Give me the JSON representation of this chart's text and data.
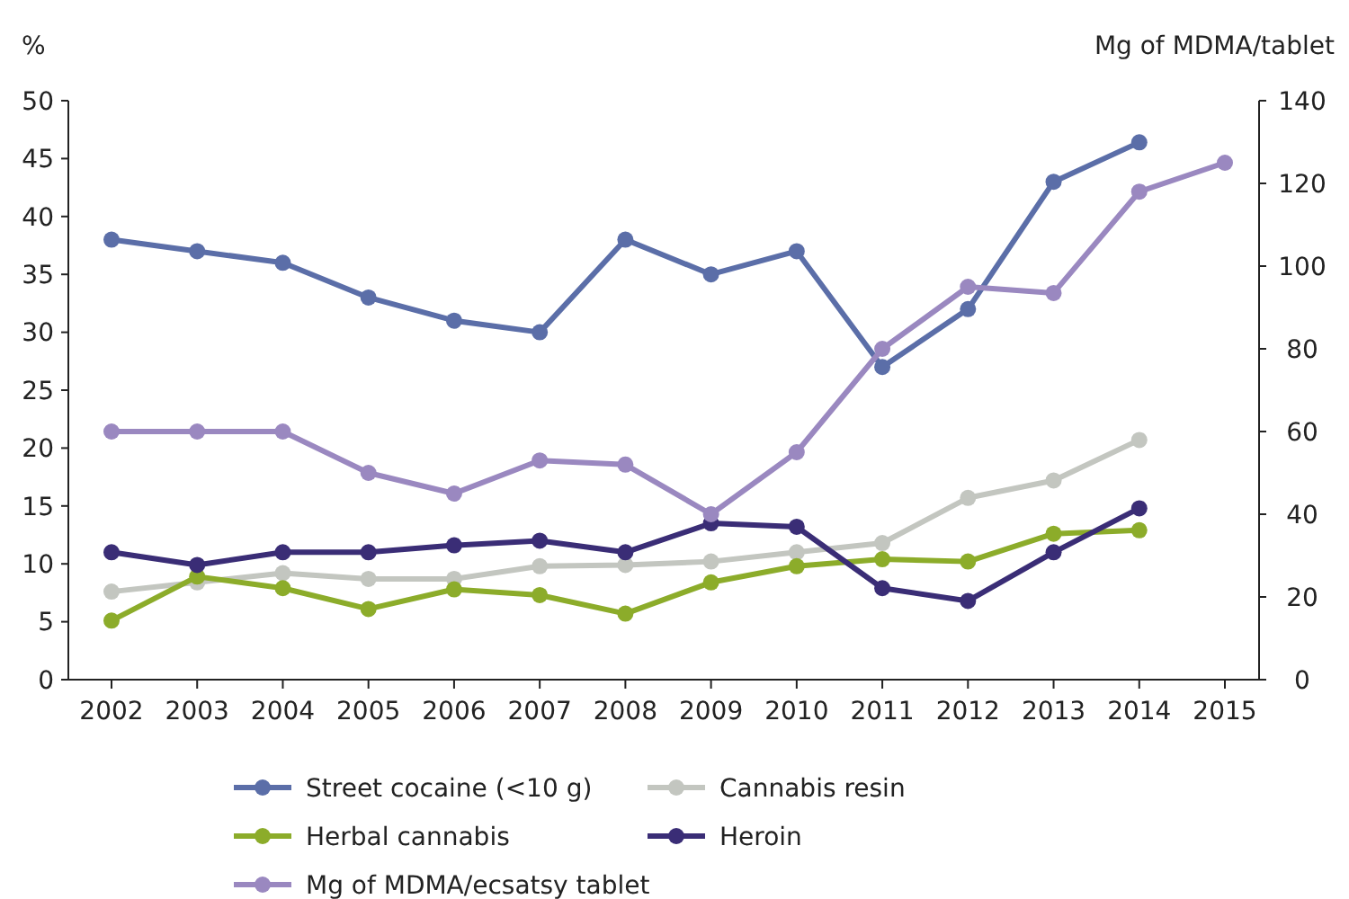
{
  "chart_data": {
    "type": "line",
    "ylabel": "%",
    "y2label": "Mg of MDMA/tablet",
    "categories": [
      "2002",
      "2003",
      "2004",
      "2005",
      "2006",
      "2007",
      "2008",
      "2009",
      "2010",
      "2011",
      "2012",
      "2013",
      "2014",
      "2015"
    ],
    "ylim": [
      0,
      50
    ],
    "yticks": [
      0,
      5,
      10,
      15,
      20,
      25,
      30,
      35,
      40,
      45,
      50
    ],
    "y2lim": [
      0,
      140
    ],
    "y2ticks": [
      0,
      20,
      40,
      60,
      80,
      100,
      120,
      140
    ],
    "marker": "circle",
    "legend": "bottom",
    "grid": false,
    "series": [
      {
        "name": "Street cocaine (<10 g)",
        "color": "#5b6ea8",
        "values": [
          38,
          37,
          36,
          33,
          31,
          30,
          38,
          35,
          37,
          27,
          32,
          43,
          46.4,
          null
        ]
      },
      {
        "name": "Cannabis resin",
        "color": "#c3c6c0",
        "values": [
          7.6,
          8.4,
          9.2,
          8.7,
          8.7,
          9.8,
          9.9,
          10.2,
          11,
          11.8,
          15.7,
          17.2,
          20.7,
          null
        ]
      },
      {
        "name": "Herbal cannabis",
        "color": "#8cac2a",
        "values": [
          5.1,
          8.9,
          7.9,
          6.1,
          7.8,
          7.3,
          5.7,
          8.4,
          9.8,
          10.4,
          10.2,
          12.6,
          12.9,
          null
        ]
      },
      {
        "name": "Heroin",
        "color": "#3a2d76",
        "values": [
          11,
          9.9,
          11,
          11,
          11.6,
          12,
          11,
          13.5,
          13.2,
          7.9,
          6.8,
          11,
          14.8,
          null
        ]
      },
      {
        "name": "Mg of MDMA/ecsatsy tablet",
        "color": "#9a88c0",
        "axis": "y2",
        "values": [
          60,
          60,
          60,
          50,
          45,
          53,
          52,
          40,
          55,
          80,
          95,
          93.5,
          118,
          125
        ]
      }
    ]
  }
}
